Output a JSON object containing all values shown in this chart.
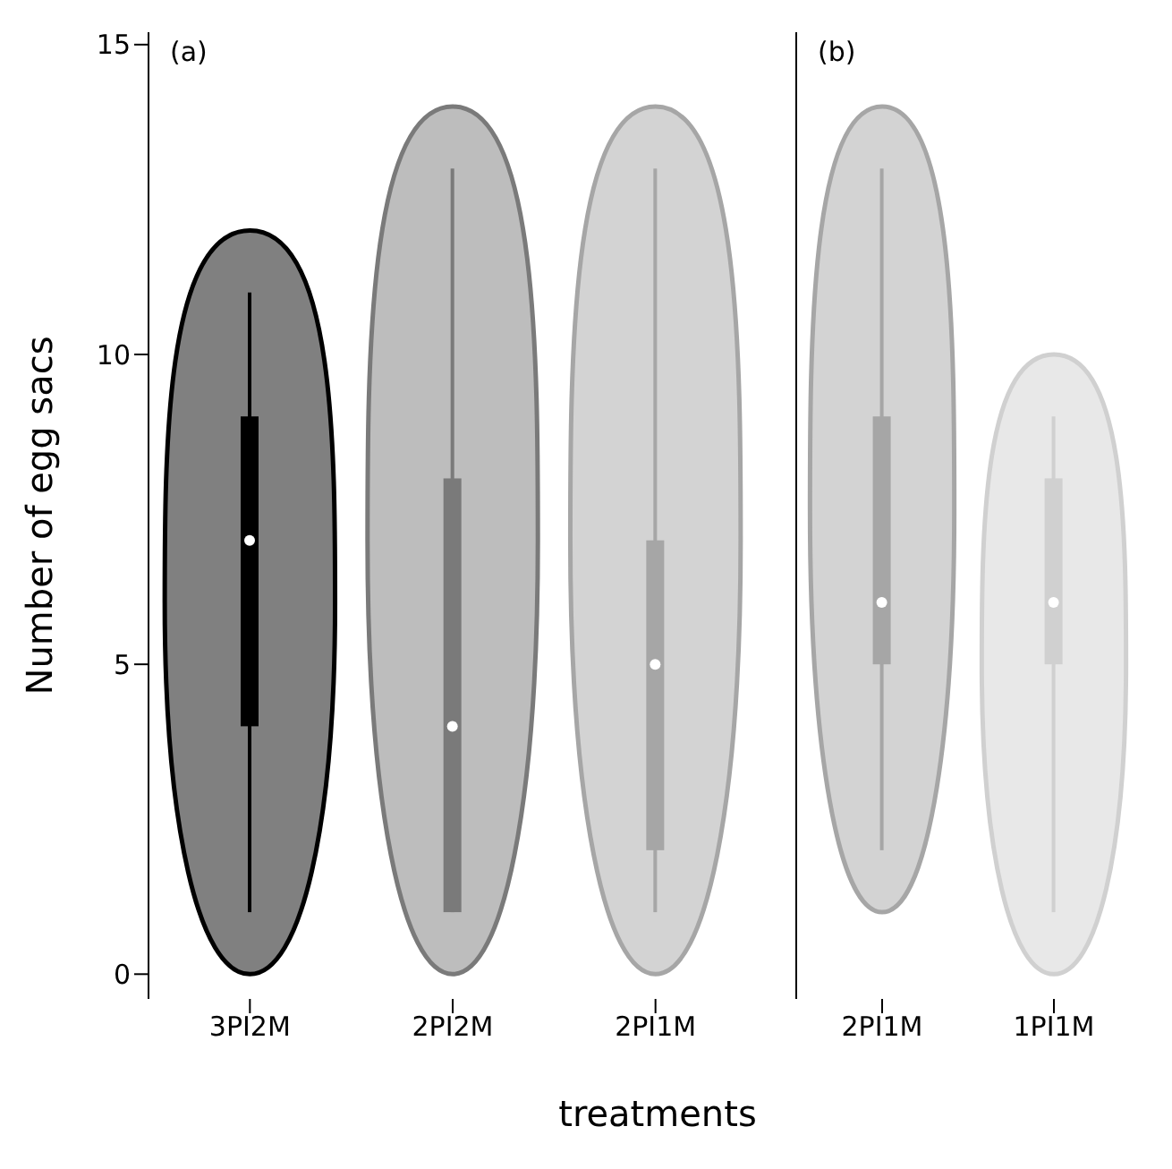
{
  "chart_data": [
    {
      "type": "box",
      "categories": [
        "3PI2M",
        "2PI2M",
        "2PI1M"
      ],
      "ylabel": "Number of egg sacs",
      "xlabel": "treatments",
      "annotations": [
        "(a)"
      ],
      "ylim": [
        -0.4,
        15.2
      ],
      "yticks": [
        0,
        5,
        10,
        15
      ],
      "grid": false,
      "legend": false,
      "colors": [
        "#000000",
        "#7a7a7a",
        "#a6a6a6"
      ],
      "boxes": [
        {
          "low": 1,
          "q1": 4,
          "median": 7,
          "q3": 9,
          "high": 11
        },
        {
          "low": 1,
          "q1": 1,
          "median": 4,
          "q3": 8,
          "high": 13
        },
        {
          "low": 1,
          "q1": 2,
          "median": 5,
          "q3": 7,
          "high": 13
        }
      ]
    },
    {
      "type": "box",
      "categories": [
        "2PI1M",
        "1PI1M"
      ],
      "annotations": [
        "(b)"
      ],
      "ylim": [
        -0.4,
        15.2
      ],
      "yticks": [
        0,
        5,
        10,
        15
      ],
      "tick_labels": "x",
      "grid": false,
      "legend": false,
      "colors": [
        "#a6a6a6",
        "#d0d0d0"
      ],
      "boxes": [
        {
          "low": 2,
          "q1": 5,
          "median": 6,
          "q3": 9,
          "high": 13
        },
        {
          "low": 1,
          "q1": 5,
          "median": 6,
          "q3": 8,
          "high": 9
        }
      ]
    }
  ]
}
